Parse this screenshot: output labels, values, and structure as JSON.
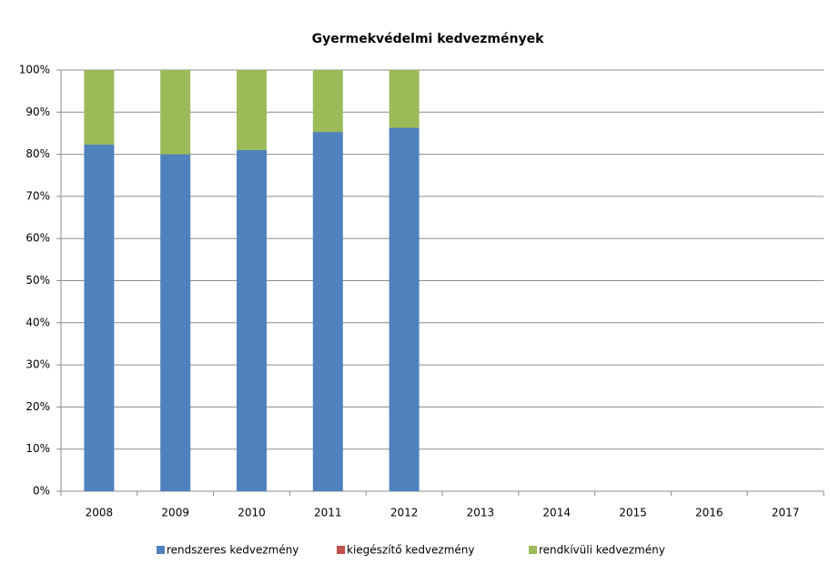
{
  "chart_data": {
    "type": "stacked_bar",
    "title": "Gyermekvédelmi kedvezmények",
    "categories": [
      "2008",
      "2009",
      "2010",
      "2011",
      "2012",
      "2013",
      "2014",
      "2015",
      "2016",
      "2017"
    ],
    "series": [
      {
        "name": "rendszeres kedvezmény",
        "color": "#4f81bd",
        "values": [
          82.3,
          80,
          81,
          85.3,
          86.3,
          null,
          null,
          null,
          null,
          null
        ]
      },
      {
        "name": "kiegészítő kedvezmény",
        "color": "#c0504d",
        "values": [
          0,
          0,
          0,
          0,
          0,
          null,
          null,
          null,
          null,
          null
        ]
      },
      {
        "name": "rendkívüli kedvezmény",
        "color": "#9bbb59",
        "values": [
          17.7,
          20,
          19,
          14.7,
          13.7,
          null,
          null,
          null,
          null,
          null
        ]
      }
    ],
    "ylim": [
      0,
      100
    ],
    "yticks": [
      {
        "value": 0,
        "label": "0%"
      },
      {
        "value": 10,
        "label": "10%"
      },
      {
        "value": 20,
        "label": "20%"
      },
      {
        "value": 30,
        "label": "30%"
      },
      {
        "value": 40,
        "label": "40%"
      },
      {
        "value": 50,
        "label": "50%"
      },
      {
        "value": 60,
        "label": "60%"
      },
      {
        "value": 70,
        "label": "70%"
      },
      {
        "value": 80,
        "label": "80%"
      },
      {
        "value": 90,
        "label": "90%"
      },
      {
        "value": 100,
        "label": "100%"
      }
    ],
    "grid": true,
    "legend": "bottom"
  }
}
